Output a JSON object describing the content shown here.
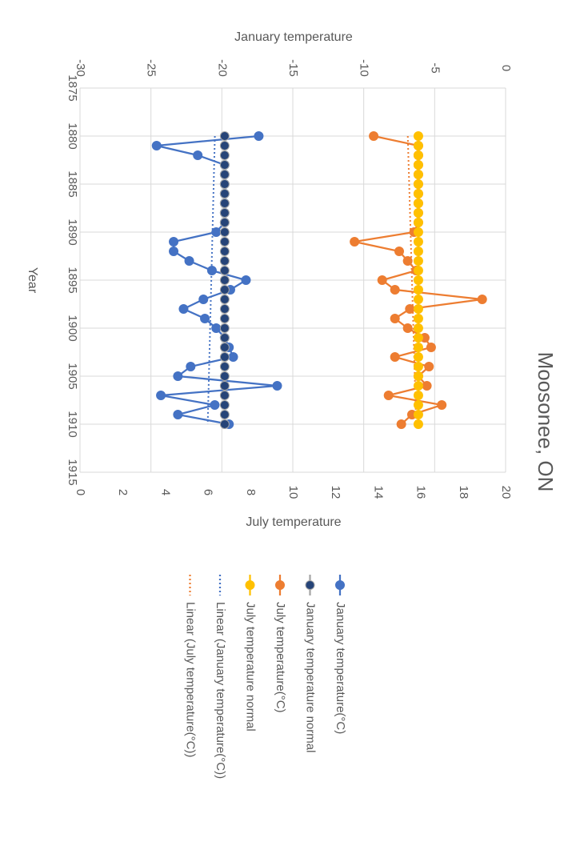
{
  "chart_data": {
    "type": "line",
    "title": "Moosonee, ON",
    "x_label": "Year",
    "y_label": "January temperature",
    "y2_label": "July temperature",
    "x": [
      1880,
      1881,
      1882,
      1883,
      1884,
      1885,
      1886,
      1887,
      1888,
      1889,
      1890,
      1891,
      1892,
      1893,
      1894,
      1895,
      1896,
      1897,
      1898,
      1899,
      1900,
      1901,
      1902,
      1903,
      1904,
      1905,
      1906,
      1907,
      1908,
      1909,
      1910
    ],
    "xlim": [
      1875,
      1915
    ],
    "xticks": [
      1875,
      1880,
      1885,
      1890,
      1895,
      1900,
      1905,
      1910,
      1915
    ],
    "ylim": [
      -30,
      0
    ],
    "yticks": [
      -30,
      -25,
      -20,
      -15,
      -10,
      -5,
      0
    ],
    "y2lim": [
      0,
      20
    ],
    "y2ticks": [
      0,
      2,
      4,
      6,
      8,
      10,
      12,
      14,
      16,
      18,
      20
    ],
    "grid": true,
    "legend": "left",
    "series": [
      {
        "name": "January temperature(°C)",
        "color": "#4472c4",
        "axis": "y",
        "values": [
          -17.4,
          -24.6,
          -21.7,
          -19.8,
          -19.8,
          -19.8,
          -19.8,
          -19.8,
          -19.8,
          -19.8,
          -20.4,
          -23.4,
          -23.4,
          -22.3,
          -20.7,
          -18.3,
          -19.4,
          -21.3,
          -22.7,
          -21.2,
          -20.4,
          -19.8,
          -19.5,
          -19.2,
          -22.2,
          -23.1,
          -16.1,
          -24.3,
          -20.5,
          -23.1,
          -19.5
        ]
      },
      {
        "name": "January temperature normal",
        "color": "#a5a5a5",
        "marker_fill": "#264478",
        "axis": "y",
        "values": [
          -19.8,
          -19.8,
          -19.8,
          -19.8,
          -19.8,
          -19.8,
          -19.8,
          -19.8,
          -19.8,
          -19.8,
          -19.8,
          -19.8,
          -19.8,
          -19.8,
          -19.8,
          -19.8,
          -19.8,
          -19.8,
          -19.8,
          -19.8,
          -19.8,
          -19.8,
          -19.8,
          -19.8,
          -19.8,
          -19.8,
          -19.8,
          -19.8,
          -19.8,
          -19.8,
          -19.8
        ]
      },
      {
        "name": "July temperature(°C)",
        "color": "#ed7d31",
        "axis": "y2",
        "values": [
          13.8,
          15.9,
          15.9,
          15.9,
          15.9,
          15.9,
          15.9,
          15.9,
          15.9,
          15.9,
          15.7,
          12.9,
          15.0,
          15.4,
          15.8,
          14.2,
          14.8,
          18.9,
          15.5,
          14.8,
          15.4,
          16.2,
          16.5,
          14.8,
          16.4,
          15.9,
          16.3,
          14.5,
          17.0,
          15.6,
          15.1
        ]
      },
      {
        "name": "July temperature normal",
        "color": "#ffc000",
        "axis": "y2",
        "values": [
          15.9,
          15.9,
          15.9,
          15.9,
          15.9,
          15.9,
          15.9,
          15.9,
          15.9,
          15.9,
          15.9,
          15.9,
          15.9,
          15.9,
          15.9,
          15.9,
          15.9,
          15.9,
          15.9,
          15.9,
          15.9,
          15.9,
          15.9,
          15.9,
          15.9,
          15.9,
          15.9,
          15.9,
          15.9,
          15.9,
          15.9
        ]
      }
    ],
    "trendlines": [
      {
        "name": "Linear (January temperature(°C))",
        "series": 0,
        "color": "#4472c4"
      },
      {
        "name": "Linear (July temperature(°C))",
        "series": 2,
        "color": "#ed7d31"
      }
    ]
  }
}
